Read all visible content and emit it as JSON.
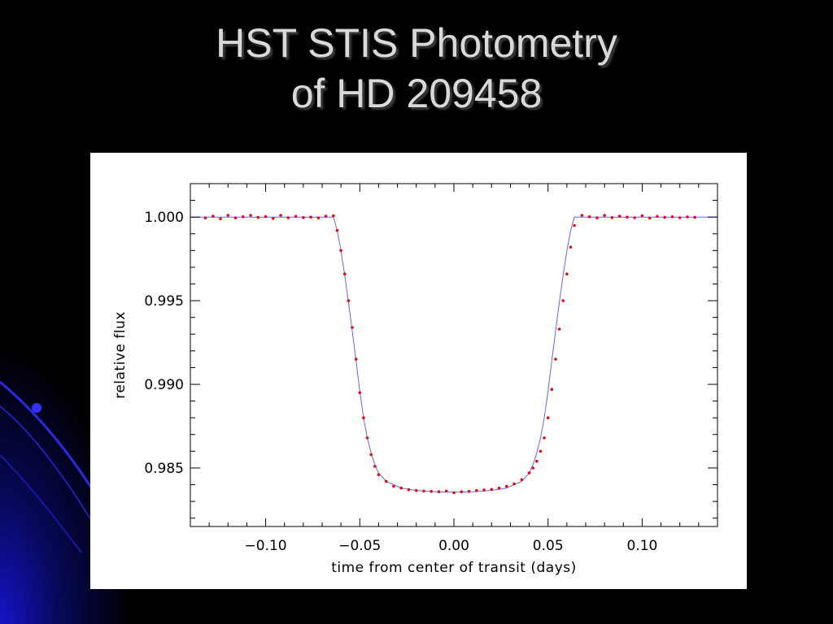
{
  "slide": {
    "title_line1": "HST STIS Photometry",
    "title_line2": "of HD 209458",
    "title_color": "#d9d9d9",
    "background_color": "#000000",
    "swoosh_color": "#1a1aff"
  },
  "chart_data": {
    "type": "scatter",
    "title": "",
    "xlabel": "time from center of transit (days)",
    "ylabel": "relative flux",
    "xlim": [
      -0.14,
      0.14
    ],
    "ylim": [
      0.9815,
      1.002
    ],
    "x_ticks": [
      -0.1,
      -0.05,
      0.0,
      0.05,
      0.1
    ],
    "x_tick_labels": [
      "−0.10",
      "−0.05",
      "0.00",
      "0.05",
      "0.10"
    ],
    "y_ticks": [
      1.0,
      0.995,
      0.99,
      0.985
    ],
    "y_tick_labels": [
      "1.000",
      "0.995",
      "0.990",
      "0.985"
    ],
    "grid": false,
    "series": [
      {
        "kind": "points",
        "color": "#e01010",
        "x": [
          -0.132,
          -0.128,
          -0.124,
          -0.12,
          -0.116,
          -0.112,
          -0.108,
          -0.104,
          -0.1,
          -0.096,
          -0.092,
          -0.088,
          -0.084,
          -0.08,
          -0.076,
          -0.072,
          -0.068,
          -0.064,
          -0.062,
          -0.06,
          -0.058,
          -0.056,
          -0.054,
          -0.052,
          -0.05,
          -0.048,
          -0.046,
          -0.044,
          -0.042,
          -0.04,
          -0.036,
          -0.032,
          -0.028,
          -0.024,
          -0.02,
          -0.016,
          -0.012,
          -0.008,
          -0.004,
          0.0,
          0.004,
          0.008,
          0.012,
          0.016,
          0.02,
          0.024,
          0.028,
          0.032,
          0.036,
          0.04,
          0.042,
          0.044,
          0.046,
          0.048,
          0.05,
          0.052,
          0.054,
          0.056,
          0.058,
          0.06,
          0.062,
          0.064,
          0.068,
          0.072,
          0.076,
          0.08,
          0.084,
          0.088,
          0.092,
          0.096,
          0.1,
          0.104,
          0.108,
          0.112,
          0.116,
          0.12,
          0.124,
          0.128
        ],
        "y": [
          0.99995,
          1.00005,
          0.9999,
          1.0001,
          0.99995,
          1.00002,
          1.0001,
          0.99998,
          1.00003,
          0.99992,
          1.0001,
          0.99996,
          1.00004,
          0.99997,
          1.0,
          0.99995,
          1.00005,
          1.00008,
          0.9992,
          0.998,
          0.9966,
          0.995,
          0.9934,
          0.9915,
          0.9895,
          0.988,
          0.9868,
          0.9858,
          0.9851,
          0.9846,
          0.9842,
          0.9839,
          0.9838,
          0.9837,
          0.98365,
          0.98362,
          0.9836,
          0.98358,
          0.98362,
          0.98352,
          0.98358,
          0.9836,
          0.98365,
          0.98368,
          0.98372,
          0.9838,
          0.9839,
          0.98405,
          0.9843,
          0.9847,
          0.985,
          0.9854,
          0.986,
          0.9868,
          0.988,
          0.9897,
          0.9915,
          0.9933,
          0.995,
          0.9966,
          0.9982,
          0.9995,
          1.0001,
          1.00002,
          0.99995,
          1.0001,
          0.99997,
          1.00005,
          1.0,
          0.99996,
          1.00008,
          0.99994,
          1.00004,
          0.99998,
          1.00002,
          0.99996,
          1.00001,
          0.99999
        ]
      },
      {
        "kind": "model",
        "color": "#6666ee",
        "x": [
          -0.14,
          -0.064,
          -0.062,
          -0.06,
          -0.058,
          -0.056,
          -0.054,
          -0.052,
          -0.05,
          -0.048,
          -0.046,
          -0.044,
          -0.042,
          -0.04,
          -0.036,
          -0.032,
          -0.028,
          -0.024,
          -0.02,
          -0.016,
          -0.012,
          -0.008,
          -0.004,
          0.0,
          0.004,
          0.008,
          0.012,
          0.016,
          0.02,
          0.024,
          0.028,
          0.032,
          0.036,
          0.04,
          0.042,
          0.044,
          0.046,
          0.048,
          0.05,
          0.052,
          0.054,
          0.056,
          0.058,
          0.06,
          0.062,
          0.064,
          0.14
        ],
        "y": [
          1.0,
          1.0,
          0.9992,
          0.998,
          0.9965,
          0.9949,
          0.9932,
          0.9914,
          0.9896,
          0.988,
          0.9868,
          0.9859,
          0.9852,
          0.9847,
          0.9842,
          0.984,
          0.9838,
          0.98372,
          0.98366,
          0.98362,
          0.98359,
          0.98357,
          0.98356,
          0.98355,
          0.98356,
          0.98357,
          0.98359,
          0.98362,
          0.98366,
          0.98372,
          0.9838,
          0.984,
          0.9842,
          0.9847,
          0.9852,
          0.9859,
          0.9868,
          0.988,
          0.9896,
          0.9914,
          0.9932,
          0.9949,
          0.9965,
          0.998,
          0.9992,
          1.0,
          1.0
        ]
      }
    ]
  }
}
